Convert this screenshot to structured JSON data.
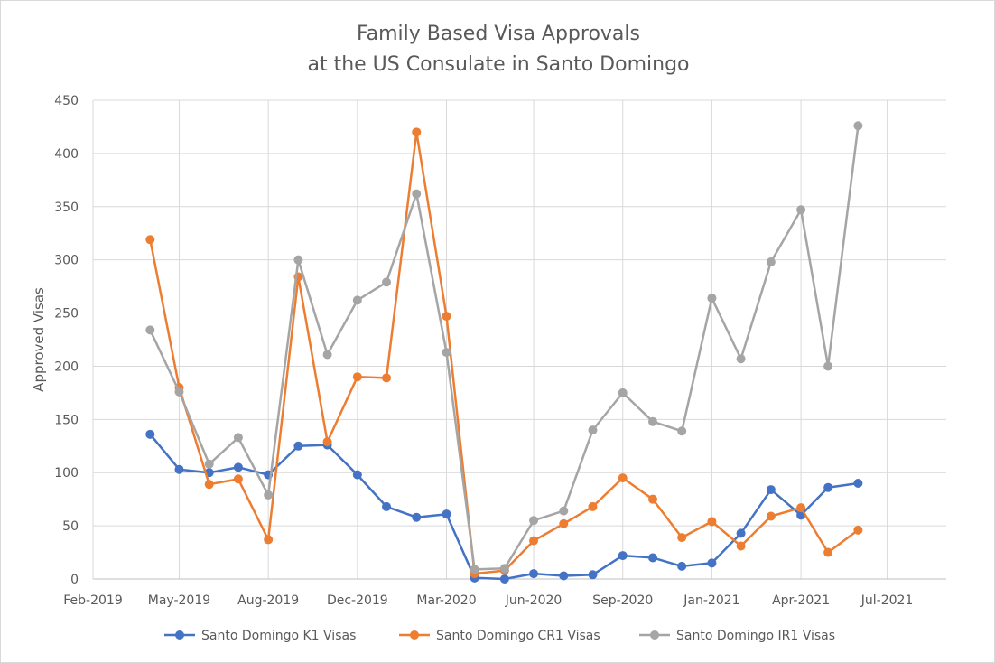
{
  "chart_data": {
    "type": "line",
    "title": "Family Based Visa Approvals",
    "subtitle": "at the US Consulate in Santo Domingo",
    "ylabel": "Approved Visas",
    "xlabel": "",
    "ylim": [
      0,
      450
    ],
    "y_ticks": [
      0,
      50,
      100,
      150,
      200,
      250,
      300,
      350,
      400,
      450
    ],
    "x_range": [
      "2019-02-01",
      "2021-07-01"
    ],
    "x_ticks": [
      {
        "date": "2019-02-01",
        "label": "Feb-2019"
      },
      {
        "date": "2019-05-01",
        "label": "May-2019"
      },
      {
        "date": "2019-08-01",
        "label": "Aug-2019"
      },
      {
        "date": "2019-11-01",
        "label": "Dec-2019"
      },
      {
        "date": "2020-02-01",
        "label": "Mar-2020"
      },
      {
        "date": "2020-05-01",
        "label": "Jun-2020"
      },
      {
        "date": "2020-08-01",
        "label": "Sep-2020"
      },
      {
        "date": "2020-11-01",
        "label": "Jan-2021"
      },
      {
        "date": "2021-02-01",
        "label": "Apr-2021"
      },
      {
        "date": "2021-05-01",
        "label": "Jul-2021"
      }
    ],
    "grid": "vertical and horizontal",
    "legend_position": "bottom",
    "x": [
      "2019-04-01",
      "2019-05-01",
      "2019-06-01",
      "2019-07-01",
      "2019-08-01",
      "2019-09-01",
      "2019-10-01",
      "2019-11-01",
      "2019-12-01",
      "2020-01-01",
      "2020-02-01",
      "2020-03-01",
      "2020-04-01",
      "2020-05-01",
      "2020-06-01",
      "2020-07-01",
      "2020-08-01",
      "2020-09-01",
      "2020-10-01",
      "2020-11-01",
      "2020-12-01",
      "2021-01-01",
      "2021-02-01",
      "2021-03-01",
      "2021-04-01"
    ],
    "series": [
      {
        "name": "Santo Domingo K1 Visas",
        "color": "#4472c4",
        "values": [
          136,
          103,
          100,
          105,
          98,
          125,
          126,
          98,
          68,
          58,
          61,
          1,
          0,
          5,
          3,
          4,
          22,
          20,
          12,
          15,
          43,
          84,
          60,
          86,
          90
        ]
      },
      {
        "name": "Santo Domingo CR1 Visas",
        "color": "#ed7d31",
        "values": [
          319,
          180,
          89,
          94,
          37,
          284,
          129,
          190,
          189,
          420,
          247,
          5,
          8,
          36,
          52,
          68,
          95,
          75,
          39,
          54,
          31,
          59,
          67,
          25,
          46
        ]
      },
      {
        "name": "Santo Domingo IR1 Visas",
        "color": "#a5a5a5",
        "values": [
          234,
          176,
          108,
          133,
          79,
          300,
          211,
          262,
          279,
          362,
          213,
          9,
          10,
          55,
          64,
          140,
          175,
          148,
          139,
          264,
          207,
          298,
          347,
          200,
          426
        ]
      }
    ]
  }
}
